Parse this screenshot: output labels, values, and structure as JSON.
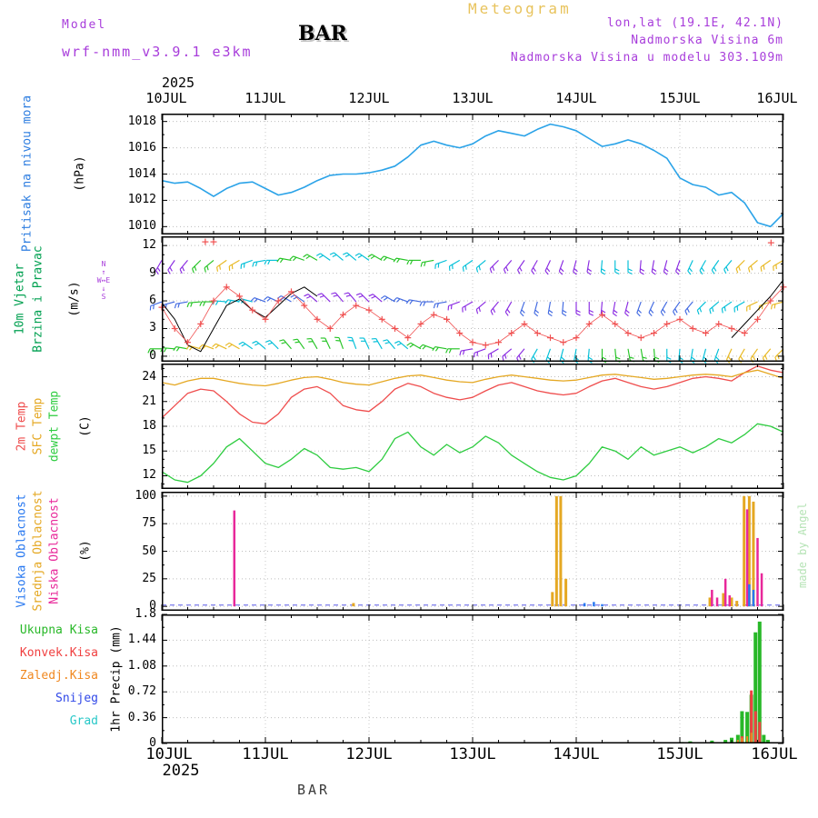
{
  "header": {
    "app_title": "Meteogram",
    "model_label": "Model",
    "model_name": "wrf-nmm_v3.9.1 e3km",
    "station": "BAR",
    "lonlat": "lon,lat (19.1E, 42.1N)",
    "elevation": "Nadmorska Visina 6m",
    "model_elevation": "Nadmorska Visina u modelu 303.109m"
  },
  "footer": {
    "station": "BAR"
  },
  "watermark": "made by Angel",
  "colors": {
    "title_orange": "#e8c35c",
    "purple": "#a83ddb",
    "watermark_green": "#b5e3b5",
    "footer_gray": "#3a3a3a"
  },
  "x_axis": {
    "year": "2025",
    "labels": [
      "10JUL",
      "11JUL",
      "12JUL",
      "13JUL",
      "14JUL",
      "15JUL",
      "16JUL"
    ]
  },
  "wind_compass": {
    "n": "N",
    "s": "S",
    "e": "E",
    "w": "W",
    "up": "↑",
    "down": "↓",
    "lr": "W↔E"
  },
  "chart_data": [
    {
      "type": "line",
      "ylabel": "Pritisak na nivou mora",
      "label_color": "#2d7de0",
      "unit": "(hPa)",
      "ylim": [
        1009.4,
        1018.6
      ],
      "yticks": [
        1010,
        1012,
        1014,
        1016,
        1018
      ],
      "ytick_labels": [
        "1010",
        "1012",
        "1014",
        "1016",
        "1018"
      ],
      "yminor": [
        1011,
        1013,
        1015,
        1017
      ],
      "xlim": [
        0,
        6
      ],
      "series": [
        {
          "name": "sea-level-pressure",
          "color": "#2ba3e8",
          "width": 1.6,
          "x0": 0,
          "dx": 0.125,
          "values": [
            1013.5,
            1013.3,
            1013.4,
            1012.9,
            1012.3,
            1012.9,
            1013.3,
            1013.4,
            1012.9,
            1012.4,
            1012.6,
            1013.0,
            1013.5,
            1013.9,
            1014.0,
            1014.0,
            1014.1,
            1014.3,
            1014.6,
            1015.3,
            1016.2,
            1016.5,
            1016.2,
            1016.0,
            1016.3,
            1016.9,
            1017.3,
            1017.1,
            1016.9,
            1017.4,
            1017.8,
            1017.6,
            1017.3,
            1016.7,
            1016.1,
            1016.3,
            1016.6,
            1016.3,
            1015.8,
            1015.2,
            1013.7,
            1013.2,
            1013.0,
            1012.4,
            1012.6,
            1011.8,
            1010.3,
            1010.0,
            1011.0
          ]
        }
      ]
    },
    {
      "type": "wind",
      "ylabels": [
        "10m Vjetar",
        "Brzina i Pravac"
      ],
      "label_color": "#00a050",
      "unit": "(m/s)",
      "ylim": [
        -0.6,
        13.0
      ],
      "yticks": [
        0,
        3,
        6,
        9,
        12
      ],
      "ytick_labels": [
        "0",
        "3",
        "6",
        "9",
        "12"
      ],
      "yminor": [
        1,
        2,
        4,
        5,
        7,
        8,
        10,
        11
      ],
      "xlim": [
        0,
        6
      ],
      "speed_plus": {
        "name": "wind-speed",
        "color": "#f05050",
        "x0": 0,
        "dx": 0.125,
        "values": [
          5.3,
          3.0,
          1.5,
          3.5,
          6.0,
          7.5,
          6.5,
          5.0,
          4.0,
          6.0,
          7.0,
          5.5,
          4.0,
          3.0,
          4.5,
          5.5,
          5.0,
          4.0,
          3.0,
          2.0,
          3.5,
          4.5,
          4.0,
          2.5,
          1.5,
          1.2,
          1.5,
          2.5,
          3.5,
          2.5,
          2.0,
          1.5,
          2.0,
          3.5,
          4.5,
          3.5,
          2.5,
          2.0,
          2.5,
          3.5,
          4.0,
          3.0,
          2.5,
          3.5,
          3.0,
          2.5,
          4.0,
          6.0,
          7.5
        ]
      },
      "speed_extra_markers": [
        [
          0.42,
          12.4
        ],
        [
          0.5,
          12.4
        ],
        [
          5.88,
          12.3
        ]
      ],
      "gust": {
        "name": "wind-gust",
        "color": "#000000",
        "x0": 0,
        "dx": 0.125,
        "values": [
          5.8,
          4.0,
          1.2,
          0.5,
          3.0,
          5.5,
          6.2,
          5.0,
          4.2,
          5.5,
          6.8,
          7.5,
          6.5,
          null,
          null,
          null,
          null,
          null,
          null,
          null,
          null,
          null,
          null,
          null,
          null,
          null,
          null,
          null,
          null,
          null,
          null,
          null,
          null,
          null,
          null,
          null,
          null,
          null,
          null,
          null,
          null,
          null,
          null,
          null,
          2.0,
          3.5,
          5.0,
          6.5,
          8.3
        ]
      },
      "barb_palette": [
        "#8a2be2",
        "#4169e1",
        "#00bfd8",
        "#25c425",
        "#e8b820"
      ],
      "barb_rows": [
        {
          "y": 10.4,
          "x0": 0,
          "dx": 0.125,
          "angles": [
            240,
            235,
            230,
            225,
            220,
            215,
            210,
            200,
            190,
            180,
            170,
            160,
            150,
            145,
            140,
            140,
            145,
            150,
            160,
            170,
            180,
            190,
            200,
            210,
            215,
            220,
            225,
            230,
            235,
            240,
            245,
            250,
            255,
            260,
            265,
            270,
            270,
            265,
            260,
            255,
            250,
            245,
            240,
            235,
            230,
            225,
            220,
            215,
            210
          ],
          "colors": [
            0,
            0,
            0,
            3,
            3,
            4,
            4,
            2,
            2,
            2,
            3,
            3,
            3,
            2,
            2,
            2,
            2,
            3,
            3,
            3,
            3,
            3,
            2,
            2,
            2,
            2,
            0,
            0,
            0,
            0,
            0,
            0,
            0,
            0,
            2,
            2,
            2,
            0,
            0,
            0,
            0,
            2,
            2,
            2,
            2,
            4,
            4,
            4,
            4
          ]
        },
        {
          "y": 5.9,
          "x0": 0,
          "dx": 0.125,
          "angles": [
            200,
            195,
            190,
            185,
            180,
            175,
            170,
            165,
            160,
            155,
            150,
            145,
            140,
            135,
            130,
            130,
            135,
            140,
            150,
            160,
            170,
            180,
            190,
            200,
            210,
            220,
            230,
            240,
            250,
            255,
            260,
            265,
            270,
            270,
            265,
            260,
            255,
            250,
            245,
            240,
            235,
            230,
            225,
            220,
            215,
            210,
            205,
            200,
            195
          ],
          "colors": [
            1,
            1,
            1,
            3,
            3,
            2,
            2,
            2,
            1,
            1,
            1,
            1,
            0,
            0,
            0,
            0,
            0,
            0,
            1,
            1,
            1,
            1,
            1,
            0,
            0,
            0,
            0,
            0,
            1,
            1,
            1,
            1,
            0,
            0,
            0,
            0,
            0,
            1,
            1,
            1,
            1,
            1,
            2,
            2,
            2,
            2,
            4,
            4,
            4
          ]
        },
        {
          "y": 0.8,
          "x0": 0,
          "dx": 0.125,
          "angles": [
            180,
            175,
            170,
            165,
            160,
            155,
            150,
            145,
            140,
            135,
            130,
            125,
            120,
            115,
            110,
            110,
            115,
            120,
            130,
            140,
            150,
            160,
            170,
            180,
            190,
            200,
            210,
            220,
            230,
            240,
            250,
            255,
            260,
            265,
            270,
            275,
            280,
            280,
            275,
            270,
            265,
            260,
            255,
            250,
            245,
            240,
            235,
            230,
            225
          ],
          "colors": [
            3,
            3,
            3,
            4,
            4,
            4,
            4,
            2,
            2,
            2,
            3,
            3,
            3,
            3,
            3,
            2,
            2,
            2,
            2,
            2,
            3,
            3,
            3,
            3,
            0,
            0,
            0,
            0,
            0,
            2,
            2,
            2,
            2,
            2,
            3,
            3,
            3,
            3,
            3,
            2,
            2,
            2,
            2,
            2,
            4,
            4,
            4,
            4,
            4
          ]
        }
      ]
    },
    {
      "type": "line",
      "unit": "(C)",
      "ylim": [
        10.4,
        25.6
      ],
      "yticks": [
        12,
        15,
        18,
        21,
        24
      ],
      "ytick_labels": [
        "12",
        "15",
        "18",
        "21",
        "24"
      ],
      "yminor": [
        11,
        13,
        14,
        16,
        17,
        19,
        20,
        22,
        23,
        25
      ],
      "xlim": [
        0,
        6
      ],
      "series": [
        {
          "name": "temp-2m",
          "label": "2m Temp",
          "color": "#ef4d4d",
          "width": 1.3,
          "x0": 0,
          "dx": 0.125,
          "values": [
            19.0,
            20.5,
            22.0,
            22.5,
            22.3,
            21.0,
            19.5,
            18.5,
            18.3,
            19.5,
            21.5,
            22.5,
            22.8,
            22.0,
            20.5,
            20.0,
            19.8,
            21.0,
            22.5,
            23.2,
            22.8,
            22.0,
            21.5,
            21.2,
            21.5,
            22.3,
            23.0,
            23.3,
            22.8,
            22.3,
            22.0,
            21.8,
            22.0,
            22.8,
            23.5,
            23.8,
            23.3,
            22.8,
            22.5,
            22.8,
            23.3,
            23.8,
            24.0,
            23.8,
            23.5,
            24.5,
            25.3,
            24.8,
            24.5
          ]
        },
        {
          "name": "temp-sfc",
          "label": "SFC Temp",
          "color": "#e5a823",
          "width": 1.3,
          "x0": 0,
          "dx": 0.125,
          "values": [
            23.3,
            23.0,
            23.5,
            23.8,
            23.8,
            23.5,
            23.2,
            23.0,
            22.9,
            23.2,
            23.6,
            23.9,
            24.0,
            23.7,
            23.3,
            23.1,
            23.0,
            23.4,
            23.8,
            24.1,
            24.2,
            23.9,
            23.6,
            23.4,
            23.3,
            23.7,
            24.0,
            24.2,
            24.0,
            23.8,
            23.6,
            23.5,
            23.6,
            23.9,
            24.2,
            24.3,
            24.1,
            23.9,
            23.7,
            23.8,
            24.0,
            24.2,
            24.3,
            24.2,
            24.0,
            24.5,
            24.8,
            24.3,
            23.8
          ]
        },
        {
          "name": "temp-dewpoint",
          "label": "dewpt Temp",
          "color": "#2ecc40",
          "width": 1.3,
          "x0": 0,
          "dx": 0.125,
          "values": [
            12.5,
            11.5,
            11.2,
            12.0,
            13.5,
            15.5,
            16.5,
            15.0,
            13.5,
            13.0,
            14.0,
            15.3,
            14.5,
            13.0,
            12.8,
            13.0,
            12.5,
            14.0,
            16.5,
            17.3,
            15.5,
            14.5,
            15.8,
            14.8,
            15.5,
            16.8,
            16.0,
            14.5,
            13.5,
            12.5,
            11.8,
            11.5,
            12.0,
            13.5,
            15.5,
            15.0,
            14.0,
            15.5,
            14.5,
            15.0,
            15.5,
            14.8,
            15.5,
            16.5,
            16.0,
            17.0,
            18.3,
            18.0,
            17.3
          ]
        }
      ]
    },
    {
      "type": "bar",
      "unit": "(%)",
      "ylim": [
        -4,
        104
      ],
      "yticks": [
        0,
        25,
        50,
        75,
        100
      ],
      "ytick_labels": [
        "0",
        "25",
        "50",
        "75",
        "100"
      ],
      "yminor": [
        12.5,
        37.5,
        62.5,
        87.5
      ],
      "xlim": [
        0,
        6
      ],
      "baseline": {
        "v": 1.2,
        "color": "#5a5ae8",
        "dash": "5 4"
      },
      "series": [
        {
          "name": "cloud-mid",
          "label": "Srednja Oblacnost",
          "color": "#e5a823",
          "barw": 3,
          "bars": [
            [
              1.85,
              3
            ],
            [
              3.77,
              13
            ],
            [
              3.81,
              100
            ],
            [
              3.85,
              100
            ],
            [
              3.9,
              25
            ],
            [
              5.29,
              8
            ],
            [
              5.42,
              12
            ],
            [
              5.5,
              8
            ],
            [
              5.55,
              5
            ],
            [
              5.62,
              100
            ],
            [
              5.67,
              100
            ],
            [
              5.71,
              95
            ]
          ]
        },
        {
          "name": "cloud-low",
          "label": "Niska Oblacnost",
          "color": "#e8289a",
          "barw": 2.5,
          "bars": [
            [
              0.7,
              87
            ],
            [
              5.31,
              15
            ],
            [
              5.36,
              8
            ],
            [
              5.44,
              25
            ],
            [
              5.48,
              10
            ],
            [
              5.65,
              88
            ],
            [
              5.75,
              62
            ],
            [
              5.79,
              30
            ]
          ]
        },
        {
          "name": "cloud-high",
          "label": "Visoka Oblacnost",
          "color": "#2878f0",
          "barw": 2.5,
          "bars": [
            [
              4.08,
              3
            ],
            [
              4.17,
              4
            ],
            [
              4.25,
              2
            ],
            [
              5.67,
              20
            ],
            [
              5.71,
              15
            ]
          ]
        }
      ]
    },
    {
      "type": "bar",
      "ylabel": "1hr Precip (mm)",
      "ylim": [
        0,
        1.8
      ],
      "yticks": [
        0,
        0.36,
        0.72,
        1.08,
        1.44,
        1.8
      ],
      "ytick_labels": [
        "0",
        "0.36",
        "0.72",
        "1.08",
        "1.44",
        "1.8"
      ],
      "yminor": [
        0.18,
        0.54,
        0.9,
        1.26,
        1.62
      ],
      "xlim": [
        0,
        6
      ],
      "baseline": {
        "v": 0.012,
        "color": "#000000",
        "dash": "6 5"
      },
      "series": [
        {
          "name": "precip-total",
          "label": "Ukupna Kisa",
          "color": "#28b828",
          "barw": 4,
          "bars": [
            [
              5.02,
              0.02
            ],
            [
              5.1,
              0.03
            ],
            [
              5.31,
              0.04
            ],
            [
              5.44,
              0.05
            ],
            [
              5.5,
              0.08
            ],
            [
              5.56,
              0.12
            ],
            [
              5.6,
              0.45
            ],
            [
              5.65,
              0.44
            ],
            [
              5.69,
              0.68
            ],
            [
              5.73,
              1.55
            ],
            [
              5.77,
              1.7
            ],
            [
              5.81,
              0.12
            ],
            [
              5.85,
              0.05
            ]
          ]
        },
        {
          "name": "precip-convective",
          "label": "Konvek.Kisa",
          "color": "#f04040",
          "barw": 3,
          "bars": [
            [
              5.6,
              0.1
            ],
            [
              5.69,
              0.74
            ],
            [
              5.73,
              0.45
            ],
            [
              5.77,
              0.3
            ]
          ]
        },
        {
          "name": "precip-frozen",
          "label": "Zaledj.Kisa",
          "color": "#f08820",
          "barw": 2,
          "bars": [
            [
              5.56,
              0.05
            ],
            [
              5.6,
              0.08
            ],
            [
              5.65,
              0.1
            ],
            [
              5.69,
              0.15
            ]
          ]
        },
        {
          "name": "precip-snow",
          "label": "Snijeg",
          "color": "#3048e8",
          "barw": 3,
          "bars": []
        },
        {
          "name": "precip-hail",
          "label": "Grad",
          "color": "#28c8c8",
          "barw": 3,
          "bars": []
        }
      ]
    }
  ]
}
